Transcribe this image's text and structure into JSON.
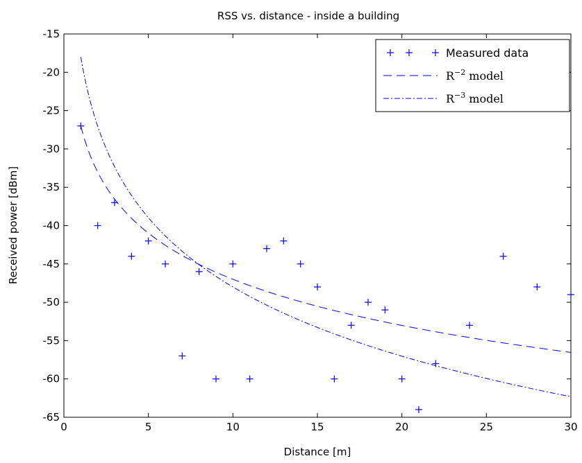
{
  "chart_data": {
    "type": "scatter",
    "title": "RSS vs. distance - inside a building",
    "xlabel": "Distance [m]",
    "ylabel": "Received power [dBm]",
    "xlim": [
      0,
      30
    ],
    "ylim": [
      -65,
      -15
    ],
    "xticks": [
      "0",
      "5",
      "10",
      "15",
      "20",
      "25",
      "30"
    ],
    "yticks": [
      "-65",
      "-60",
      "-55",
      "-50",
      "-45",
      "-40",
      "-35",
      "-30",
      "-25",
      "-20",
      "-15"
    ],
    "grid": false,
    "legend_position": "top-right",
    "colors": {
      "series": "#0000ff",
      "axis": "#000000"
    },
    "series": [
      {
        "name": "Measured data",
        "style": "markers-plus",
        "x": [
          1,
          2,
          3,
          4,
          5,
          6,
          7,
          8,
          9,
          10,
          11,
          12,
          13,
          14,
          15,
          16,
          17,
          18,
          19,
          20,
          21,
          22,
          24,
          26,
          28,
          30
        ],
        "y": [
          -27,
          -40,
          -37,
          -44,
          -42,
          -45,
          -57,
          -46,
          -60,
          -45,
          -60,
          -43,
          -42,
          -45,
          -48,
          -60,
          -53,
          -50,
          -51,
          -60,
          -64,
          -58,
          -53,
          -44,
          -48,
          -49
        ]
      },
      {
        "name": "R^-2 model",
        "name_base": "R",
        "name_exp": "−2",
        "name_suffix": "model",
        "style": "dashed",
        "formula": "P(d) = -27 - 20*log10(d)"
      },
      {
        "name": "R^-3 model",
        "name_base": "R",
        "name_exp": "−3",
        "name_suffix": "model",
        "style": "dashdot",
        "formula": "P(d) = -18 - 30*log10(d)"
      }
    ]
  }
}
